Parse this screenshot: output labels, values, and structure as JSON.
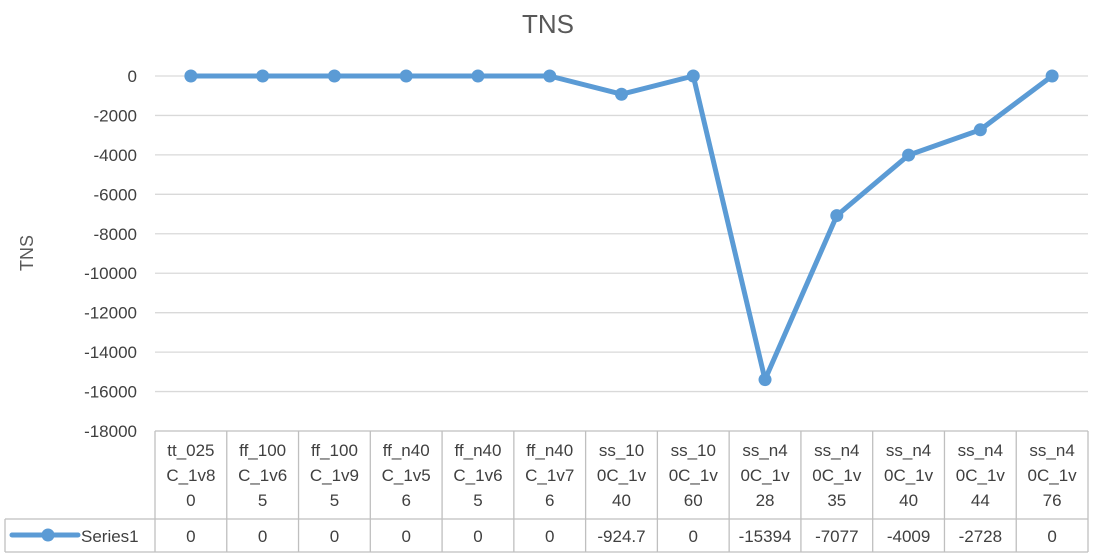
{
  "chart_data": {
    "type": "line",
    "title": "TNS",
    "ylabel": "TNS",
    "xlabel": "",
    "ylim": [
      -18000,
      0
    ],
    "ytick_step": 2000,
    "yticks": [
      "0",
      "-2000",
      "-4000",
      "-6000",
      "-8000",
      "-10000",
      "-12000",
      "-14000",
      "-16000",
      "-18000"
    ],
    "grid": true,
    "legend_placement": "data-table",
    "data_table": true,
    "categories": [
      [
        "tt_025",
        "C_1v8",
        "0"
      ],
      [
        "ff_100",
        "C_1v6",
        "5"
      ],
      [
        "ff_100",
        "C_1v9",
        "5"
      ],
      [
        "ff_n40",
        "C_1v5",
        "6"
      ],
      [
        "ff_n40",
        "C_1v6",
        "5"
      ],
      [
        "ff_n40",
        "C_1v7",
        "6"
      ],
      [
        "ss_10",
        "0C_1v",
        "40"
      ],
      [
        "ss_10",
        "0C_1v",
        "60"
      ],
      [
        "ss_n4",
        "0C_1v",
        "28"
      ],
      [
        "ss_n4",
        "0C_1v",
        "35"
      ],
      [
        "ss_n4",
        "0C_1v",
        "40"
      ],
      [
        "ss_n4",
        "0C_1v",
        "44"
      ],
      [
        "ss_n4",
        "0C_1v",
        "76"
      ]
    ],
    "series": [
      {
        "name": "Series1",
        "color": "#5b9bd5",
        "values": [
          0,
          0,
          0,
          0,
          0,
          0,
          -924.7,
          0,
          -15394,
          -7077,
          -4009,
          -2728,
          0
        ],
        "labels": [
          "0",
          "0",
          "0",
          "0",
          "0",
          "0",
          "-924.7",
          "0",
          "-15394",
          "-7077",
          "-4009",
          "-2728",
          "0"
        ]
      }
    ]
  }
}
